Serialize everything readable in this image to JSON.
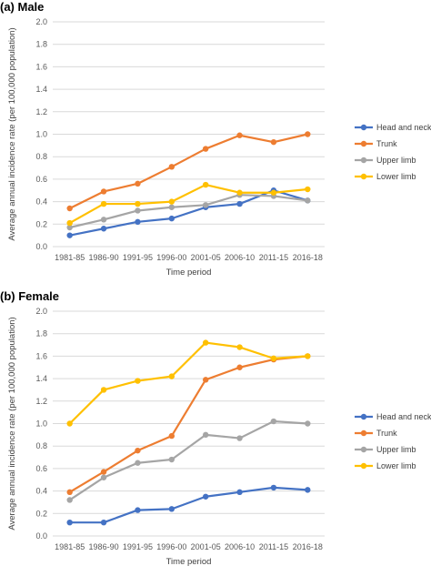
{
  "chart_data": [
    {
      "type": "line",
      "title": "(a) Male",
      "xlabel": "Time period",
      "ylabel": "Average annual incidence rate (per 100,000 population)",
      "ylim": [
        0,
        2.0
      ],
      "yticks": [
        "0.0",
        "0.2",
        "0.4",
        "0.6",
        "0.8",
        "1.0",
        "1.2",
        "1.4",
        "1.6",
        "1.8",
        "2.0"
      ],
      "categories": [
        "1981-85",
        "1986-90",
        "1991-95",
        "1996-00",
        "2001-05",
        "2006-10",
        "2011-15",
        "2016-18"
      ],
      "grid": true,
      "legend_position": "right",
      "series": [
        {
          "name": "Head and neck",
          "color": "#4472C4",
          "values": [
            0.1,
            0.16,
            0.22,
            0.25,
            0.35,
            0.38,
            0.5,
            0.41
          ]
        },
        {
          "name": "Trunk",
          "color": "#ED7D31",
          "values": [
            0.34,
            0.49,
            0.56,
            0.71,
            0.87,
            0.99,
            0.93,
            1.0
          ]
        },
        {
          "name": "Upper limb",
          "color": "#A5A5A5",
          "values": [
            0.17,
            0.24,
            0.32,
            0.35,
            0.37,
            0.46,
            0.45,
            0.41
          ]
        },
        {
          "name": "Lower limb",
          "color": "#FFC000",
          "values": [
            0.21,
            0.38,
            0.38,
            0.4,
            0.55,
            0.48,
            0.48,
            0.51
          ]
        }
      ]
    },
    {
      "type": "line",
      "title": "(b) Female",
      "xlabel": "Time period",
      "ylabel": "Average annual incidence rate (per 100,000 population)",
      "ylim": [
        0,
        2.0
      ],
      "yticks": [
        "0.0",
        "0.2",
        "0.4",
        "0.6",
        "0.8",
        "1.0",
        "1.2",
        "1.4",
        "1.6",
        "1.8",
        "2.0"
      ],
      "categories": [
        "1981-85",
        "1986-90",
        "1991-95",
        "1996-00",
        "2001-05",
        "2006-10",
        "2011-15",
        "2016-18"
      ],
      "grid": true,
      "legend_position": "right",
      "series": [
        {
          "name": "Head and neck",
          "color": "#4472C4",
          "values": [
            0.12,
            0.12,
            0.23,
            0.24,
            0.35,
            0.39,
            0.43,
            0.41
          ]
        },
        {
          "name": "Trunk",
          "color": "#ED7D31",
          "values": [
            0.39,
            0.57,
            0.76,
            0.89,
            1.39,
            1.5,
            1.57,
            1.6
          ]
        },
        {
          "name": "Upper limb",
          "color": "#A5A5A5",
          "values": [
            0.32,
            0.52,
            0.65,
            0.68,
            0.9,
            0.87,
            1.02,
            1.0
          ]
        },
        {
          "name": "Lower limb",
          "color": "#FFC000",
          "values": [
            1.0,
            1.3,
            1.38,
            1.42,
            1.72,
            1.68,
            1.58,
            1.6
          ]
        }
      ]
    }
  ]
}
